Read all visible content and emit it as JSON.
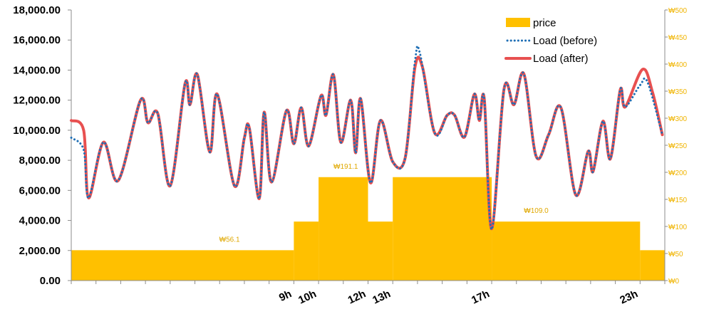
{
  "chart_data": {
    "type": "line",
    "title": "",
    "colors": {
      "price": "#ffc000",
      "load_before": "#1f6fb5",
      "load_after": "#e85050",
      "right_axis_text": "#f0b400",
      "price_label_text": "#e0a800"
    },
    "y_left": {
      "ylim": [
        0,
        18000
      ],
      "ticks": [
        {
          "value": 0,
          "label": "0.00"
        },
        {
          "value": 2000,
          "label": "2,000.00"
        },
        {
          "value": 4000,
          "label": "4,000.00"
        },
        {
          "value": 6000,
          "label": "6,000.00"
        },
        {
          "value": 8000,
          "label": "8,000.00"
        },
        {
          "value": 10000,
          "label": "10,000.00"
        },
        {
          "value": 12000,
          "label": "12,000.00"
        },
        {
          "value": 14000,
          "label": "14,000.00"
        },
        {
          "value": 16000,
          "label": "16,000.00"
        },
        {
          "value": 18000,
          "label": "18,000.00"
        }
      ]
    },
    "y_right": {
      "ylim": [
        0,
        500
      ],
      "ticks": [
        {
          "value": 0,
          "label": "₩0"
        },
        {
          "value": 50,
          "label": "₩50"
        },
        {
          "value": 100,
          "label": "₩100"
        },
        {
          "value": 150,
          "label": "₩150"
        },
        {
          "value": 200,
          "label": "₩200"
        },
        {
          "value": 250,
          "label": "₩250"
        },
        {
          "value": 300,
          "label": "₩300"
        },
        {
          "value": 350,
          "label": "₩350"
        },
        {
          "value": 400,
          "label": "₩400"
        },
        {
          "value": 450,
          "label": "₩450"
        },
        {
          "value": 500,
          "label": "₩500"
        }
      ]
    },
    "x_hours": [
      0,
      24
    ],
    "x_tick_labels": [
      {
        "hour": 9,
        "label": "9h"
      },
      {
        "hour": 10,
        "label": "10h"
      },
      {
        "hour": 12,
        "label": "12h"
      },
      {
        "hour": 13,
        "label": "13h"
      },
      {
        "hour": 17,
        "label": "17h"
      },
      {
        "hour": 23,
        "label": "23h"
      }
    ],
    "price_steps": [
      {
        "start": 0,
        "end": 9,
        "value": 56.1
      },
      {
        "start": 9,
        "end": 10,
        "value": 109.0
      },
      {
        "start": 10,
        "end": 12,
        "value": 191.1
      },
      {
        "start": 12,
        "end": 13,
        "value": 109.0
      },
      {
        "start": 13,
        "end": 17,
        "value": 191.1
      },
      {
        "start": 17,
        "end": 23,
        "value": 109.0
      },
      {
        "start": 23,
        "end": 24,
        "value": 56.1
      }
    ],
    "price_labels": [
      {
        "hour": 6.4,
        "value": 56.1,
        "label": "₩56.1"
      },
      {
        "hour": 11.1,
        "value": 191.1,
        "label": "₩191.1"
      },
      {
        "hour": 18.8,
        "value": 109.0,
        "label": "₩109.0"
      }
    ],
    "legend": {
      "position": "top-right",
      "entries": [
        {
          "key": "price",
          "label": "price"
        },
        {
          "key": "load_before",
          "label": "Load (before)"
        },
        {
          "key": "load_after",
          "label": "Load (after)"
        }
      ]
    },
    "series": [
      {
        "key": "load_after",
        "name": "Load (after)",
        "points": [
          [
            0,
            10650
          ],
          [
            0.5,
            10000
          ],
          [
            0.7,
            5500
          ],
          [
            1.3,
            9200
          ],
          [
            1.9,
            6650
          ],
          [
            2.8,
            12000
          ],
          [
            3.1,
            10500
          ],
          [
            3.5,
            11100
          ],
          [
            4.0,
            6300
          ],
          [
            4.6,
            13100
          ],
          [
            4.8,
            11700
          ],
          [
            5.1,
            13700
          ],
          [
            5.6,
            8550
          ],
          [
            5.9,
            12400
          ],
          [
            6.6,
            6300
          ],
          [
            7.0,
            9500
          ],
          [
            7.2,
            10150
          ],
          [
            7.6,
            5450
          ],
          [
            7.8,
            11200
          ],
          [
            8.1,
            6550
          ],
          [
            8.7,
            11300
          ],
          [
            9.0,
            9100
          ],
          [
            9.3,
            11500
          ],
          [
            9.6,
            8950
          ],
          [
            10.1,
            12300
          ],
          [
            10.3,
            11000
          ],
          [
            10.6,
            13700
          ],
          [
            10.9,
            9200
          ],
          [
            11.3,
            12000
          ],
          [
            11.5,
            8500
          ],
          [
            11.7,
            12100
          ],
          [
            12.1,
            6500
          ],
          [
            12.5,
            10650
          ],
          [
            13.0,
            7900
          ],
          [
            13.5,
            8150
          ],
          [
            13.9,
            14200
          ],
          [
            14.2,
            14200
          ],
          [
            14.7,
            9800
          ],
          [
            15.2,
            11000
          ],
          [
            15.5,
            11000
          ],
          [
            15.9,
            9550
          ],
          [
            16.3,
            12400
          ],
          [
            16.5,
            10650
          ],
          [
            16.7,
            12100
          ],
          [
            17.0,
            3450
          ],
          [
            17.5,
            12750
          ],
          [
            17.9,
            11700
          ],
          [
            18.3,
            13750
          ],
          [
            18.8,
            8250
          ],
          [
            19.3,
            9700
          ],
          [
            19.8,
            11500
          ],
          [
            20.4,
            5700
          ],
          [
            20.9,
            8600
          ],
          [
            21.1,
            7250
          ],
          [
            21.5,
            10600
          ],
          [
            21.8,
            8100
          ],
          [
            22.2,
            12700
          ],
          [
            22.4,
            11550
          ],
          [
            23.1,
            14050
          ],
          [
            23.5,
            12550
          ],
          [
            23.9,
            9700
          ]
        ]
      },
      {
        "key": "load_before",
        "name": "Load (before)",
        "points": [
          [
            0,
            9500
          ],
          [
            0.5,
            8700
          ],
          [
            0.7,
            5500
          ],
          [
            1.3,
            9200
          ],
          [
            1.9,
            6650
          ],
          [
            2.8,
            12000
          ],
          [
            3.1,
            10500
          ],
          [
            3.5,
            11100
          ],
          [
            4.0,
            6300
          ],
          [
            4.6,
            13100
          ],
          [
            4.8,
            11700
          ],
          [
            5.1,
            13700
          ],
          [
            5.6,
            8550
          ],
          [
            5.9,
            12400
          ],
          [
            6.6,
            6300
          ],
          [
            7.0,
            9500
          ],
          [
            7.2,
            10150
          ],
          [
            7.6,
            5450
          ],
          [
            7.8,
            11200
          ],
          [
            8.1,
            6550
          ],
          [
            8.7,
            11300
          ],
          [
            9.0,
            9100
          ],
          [
            9.3,
            11500
          ],
          [
            9.6,
            8950
          ],
          [
            10.1,
            12300
          ],
          [
            10.3,
            11000
          ],
          [
            10.6,
            13700
          ],
          [
            10.9,
            9200
          ],
          [
            11.3,
            12000
          ],
          [
            11.5,
            8500
          ],
          [
            11.7,
            12100
          ],
          [
            12.1,
            6500
          ],
          [
            12.5,
            10650
          ],
          [
            13.0,
            7900
          ],
          [
            13.5,
            8150
          ],
          [
            13.9,
            14600
          ],
          [
            14.1,
            15100
          ],
          [
            14.7,
            9800
          ],
          [
            15.2,
            11000
          ],
          [
            15.5,
            11000
          ],
          [
            15.9,
            9550
          ],
          [
            16.3,
            12400
          ],
          [
            16.5,
            10650
          ],
          [
            16.7,
            12100
          ],
          [
            17.0,
            3400
          ],
          [
            17.5,
            12750
          ],
          [
            17.9,
            11700
          ],
          [
            18.3,
            13750
          ],
          [
            18.8,
            8250
          ],
          [
            19.3,
            9700
          ],
          [
            19.8,
            11500
          ],
          [
            20.4,
            5700
          ],
          [
            20.9,
            8600
          ],
          [
            21.1,
            7250
          ],
          [
            21.5,
            10600
          ],
          [
            21.8,
            8100
          ],
          [
            22.2,
            12700
          ],
          [
            22.4,
            11550
          ],
          [
            23.0,
            13000
          ],
          [
            23.3,
            13200
          ],
          [
            23.9,
            9700
          ]
        ]
      }
    ]
  }
}
